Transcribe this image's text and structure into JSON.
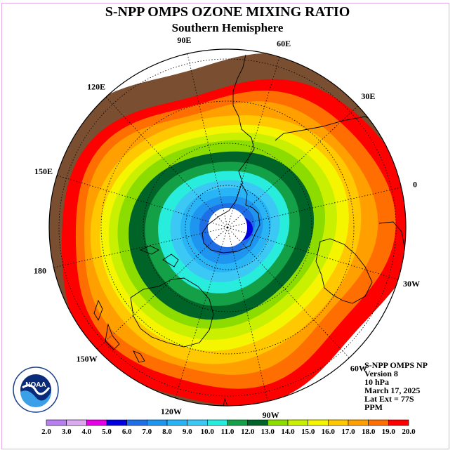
{
  "title": "S-NPP OMPS OZONE MIXING RATIO",
  "subtitle": "Southern Hemisphere",
  "info": {
    "instrument": "S-NPP OMPS NP",
    "version": "Version 8",
    "level": "10 hPa",
    "date": "March 17, 2025",
    "lat_ext": "Lat Ext = 77S",
    "units": "PPM"
  },
  "logo_text": "NOAA",
  "logo_ring_text": "NATIONAL OCEANIC AND ATMOSPHERIC ADMINISTRATION · U.S. DEPARTMENT OF COMMERCE",
  "longitude_labels": [
    {
      "label": "0",
      "lon": 0
    },
    {
      "label": "30E",
      "lon": 30
    },
    {
      "label": "60E",
      "lon": 60
    },
    {
      "label": "90E",
      "lon": 90
    },
    {
      "label": "120E",
      "lon": 120
    },
    {
      "label": "150E",
      "lon": 150
    },
    {
      "label": "180",
      "lon": 180
    },
    {
      "label": "150W",
      "lon": -150
    },
    {
      "label": "120W",
      "lon": -120
    },
    {
      "label": "90W",
      "lon": -90
    },
    {
      "label": "60W",
      "lon": -60
    },
    {
      "label": "30W",
      "lon": -30
    }
  ],
  "chart_data": {
    "type": "heatmap",
    "projection": "south polar stereographic",
    "title": "S-NPP OMPS OZONE MIXING RATIO",
    "subtitle": "Southern Hemisphere",
    "units": "PPM",
    "pressure_level": "10 hPa",
    "date": "March 17, 2025",
    "lat_ext": "77S",
    "colorbar_ticks": [
      "2.0",
      "3.0",
      "4.0",
      "5.0",
      "6.0",
      "7.0",
      "8.0",
      "9.0",
      "10.0",
      "11.0",
      "12.0",
      "13.0",
      "14.0",
      "15.0",
      "16.0",
      "17.0",
      "18.0",
      "19.0",
      "20.0"
    ],
    "colorbar_colors": [
      "#b77fef",
      "#dcaaf0",
      "#e600e6",
      "#0000e0",
      "#1e6ee6",
      "#1e96f0",
      "#28b4f5",
      "#3cc8f5",
      "#28ecdc",
      "#14a046",
      "#006428",
      "#8cdc00",
      "#c8f000",
      "#f5f500",
      "#ffc800",
      "#ffa000",
      "#ff6e00",
      "#ff0000",
      "#7a4e30"
    ],
    "field_description_levels": [
      {
        "value": 6.0,
        "color": "#1e6ee6"
      },
      {
        "value": 7.0,
        "color": "#1e96f0"
      },
      {
        "value": 8.0,
        "color": "#28b4f5"
      },
      {
        "value": 9.0,
        "color": "#3cc8f5"
      },
      {
        "value": 10.0,
        "color": "#28ecdc"
      },
      {
        "value": 11.0,
        "color": "#14a046"
      },
      {
        "value": 12.0,
        "color": "#006428"
      },
      {
        "value": 13.0,
        "color": "#8cdc00"
      },
      {
        "value": 14.0,
        "color": "#c8f000"
      },
      {
        "value": 15.0,
        "color": "#f5f500"
      },
      {
        "value": 16.0,
        "color": "#ffc800"
      },
      {
        "value": 17.0,
        "color": "#ffa000"
      },
      {
        "value": 18.0,
        "color": "#ff6e00"
      },
      {
        "value": 19.0,
        "color": "#ff0000"
      },
      {
        "value": 20.0,
        "color": "#7a4e30"
      }
    ],
    "minimum_value": 5.0,
    "maximum_value": 20.0,
    "no_data_region": "south of 77S (white disk at pole)",
    "grid": true
  }
}
